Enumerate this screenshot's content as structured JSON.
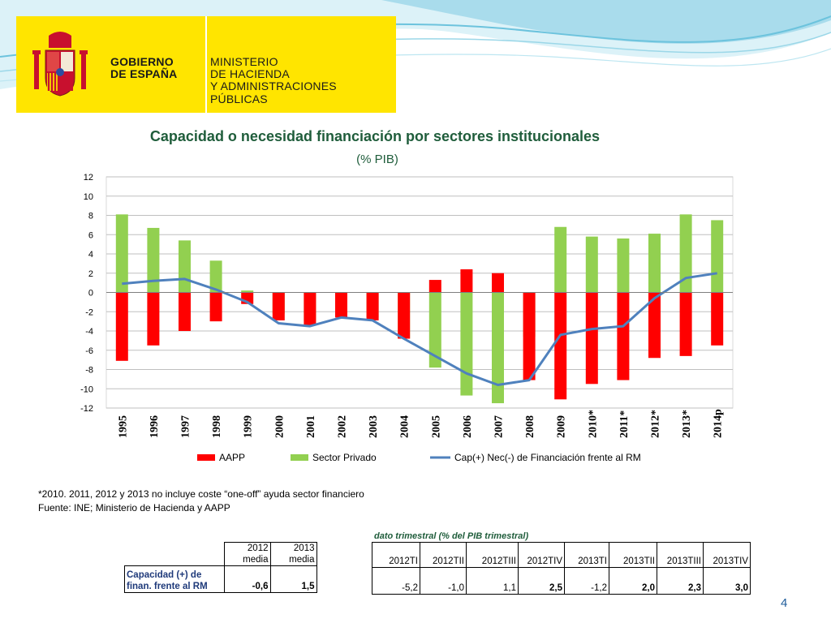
{
  "header": {
    "logo_left_line1": "GOBIERNO",
    "logo_left_line2": "DE ESPAÑA",
    "logo_right_line1": "MINISTERIO",
    "logo_right_line2": "DE HACIENDA",
    "logo_right_line3": "Y ADMINISTRACIONES PÚBLICAS",
    "logo_color": "#ffe500"
  },
  "chart_data": {
    "type": "bar",
    "title": "Capacidad o necesidad financiación por sectores institucionales",
    "subtitle": "(% PIB)",
    "categories": [
      "1995",
      "1996",
      "1997",
      "1998",
      "1999",
      "2000",
      "2001",
      "2002",
      "2003",
      "2004",
      "2005",
      "2006",
      "2007",
      "2008",
      "2009",
      "2010*",
      "2011*",
      "2012*",
      "2013*",
      "2014p"
    ],
    "ylim": [
      -12,
      12
    ],
    "yticks": [
      12,
      10,
      8,
      6,
      4,
      2,
      0,
      -2,
      -4,
      -6,
      -8,
      -10,
      -12
    ],
    "grid": true,
    "legend_position": "bottom",
    "series": [
      {
        "name": "AAPP",
        "type": "bar",
        "color": "#ff0000",
        "values": [
          -7.1,
          -5.5,
          -4.0,
          -3.0,
          -1.2,
          -2.9,
          -3.4,
          -2.6,
          -2.9,
          -4.8,
          1.3,
          2.4,
          2.0,
          -9.1,
          -11.1,
          -9.5,
          -9.1,
          -6.8,
          -6.6,
          -5.5
        ]
      },
      {
        "name": "Sector Privado",
        "type": "bar",
        "color": "#92d050",
        "values": [
          8.1,
          6.7,
          5.4,
          3.3,
          0.2,
          -2.2,
          -3.0,
          -2.4,
          -2.6,
          -4.8,
          -7.8,
          -10.7,
          -11.5,
          -4.6,
          6.8,
          5.8,
          5.6,
          6.1,
          8.1,
          7.5
        ]
      },
      {
        "name": "Cap(+) Nec(-) de Financiación frente al RM",
        "type": "line",
        "color": "#4f81bd",
        "values": [
          0.9,
          1.2,
          1.4,
          0.3,
          -1.0,
          -3.2,
          -3.5,
          -2.6,
          -2.9,
          -4.8,
          -6.6,
          -8.4,
          -9.6,
          -9.1,
          -4.4,
          -3.8,
          -3.5,
          -0.6,
          1.5,
          2.0
        ]
      }
    ]
  },
  "notes": {
    "line1": "*2010. 2011, 2012 y 2013 no incluye coste “one-off” ayuda sector financiero",
    "line2": "Fuente: INE;  Ministerio de Hacienda y AAPP"
  },
  "table": {
    "caption": "dato trimestral (% del PIB trimestral)",
    "row_label_1": "Capacidad (+) de",
    "row_label_2": "finan. frente al RM",
    "annual_headers": [
      [
        "2012",
        "media"
      ],
      [
        "2013",
        "media"
      ]
    ],
    "annual_values": [
      "-0,6",
      "1,5"
    ],
    "quarter_headers": [
      "2012TI",
      "2012TII",
      "2012TIII",
      "2012TIV",
      "2013TI",
      "2013TII",
      "2013TIII",
      "2013TIV"
    ],
    "quarter_values": [
      "-5,2",
      "-1,0",
      "1,1",
      "2,5",
      "-1,2",
      "2,0",
      "2,3",
      "3,0"
    ],
    "quarter_bold": [
      false,
      false,
      false,
      true,
      false,
      true,
      true,
      true
    ]
  },
  "page_number": "4"
}
